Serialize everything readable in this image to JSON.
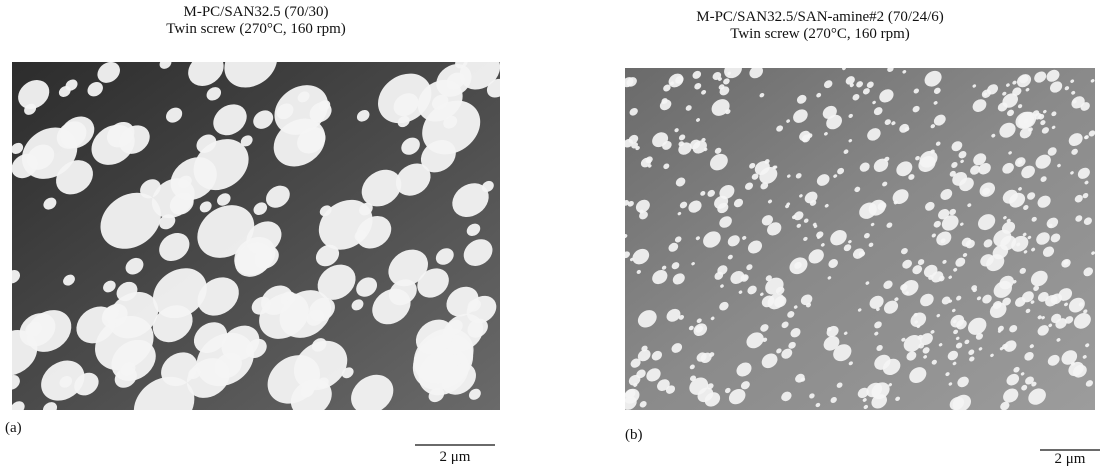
{
  "panels": [
    {
      "title": [
        "M-PC/SAN32.5 (70/30)",
        "Twin screw (270°C, 160 rpm)"
      ],
      "label": "(a)",
      "scale_bar": "2 μm"
    },
    {
      "title": [
        "M-PC/SAN32.5/SAN-amine#2 (70/24/6)",
        "Twin screw (270°C, 160 rpm)"
      ],
      "label": "(b)",
      "scale_bar": "2 μm"
    }
  ]
}
